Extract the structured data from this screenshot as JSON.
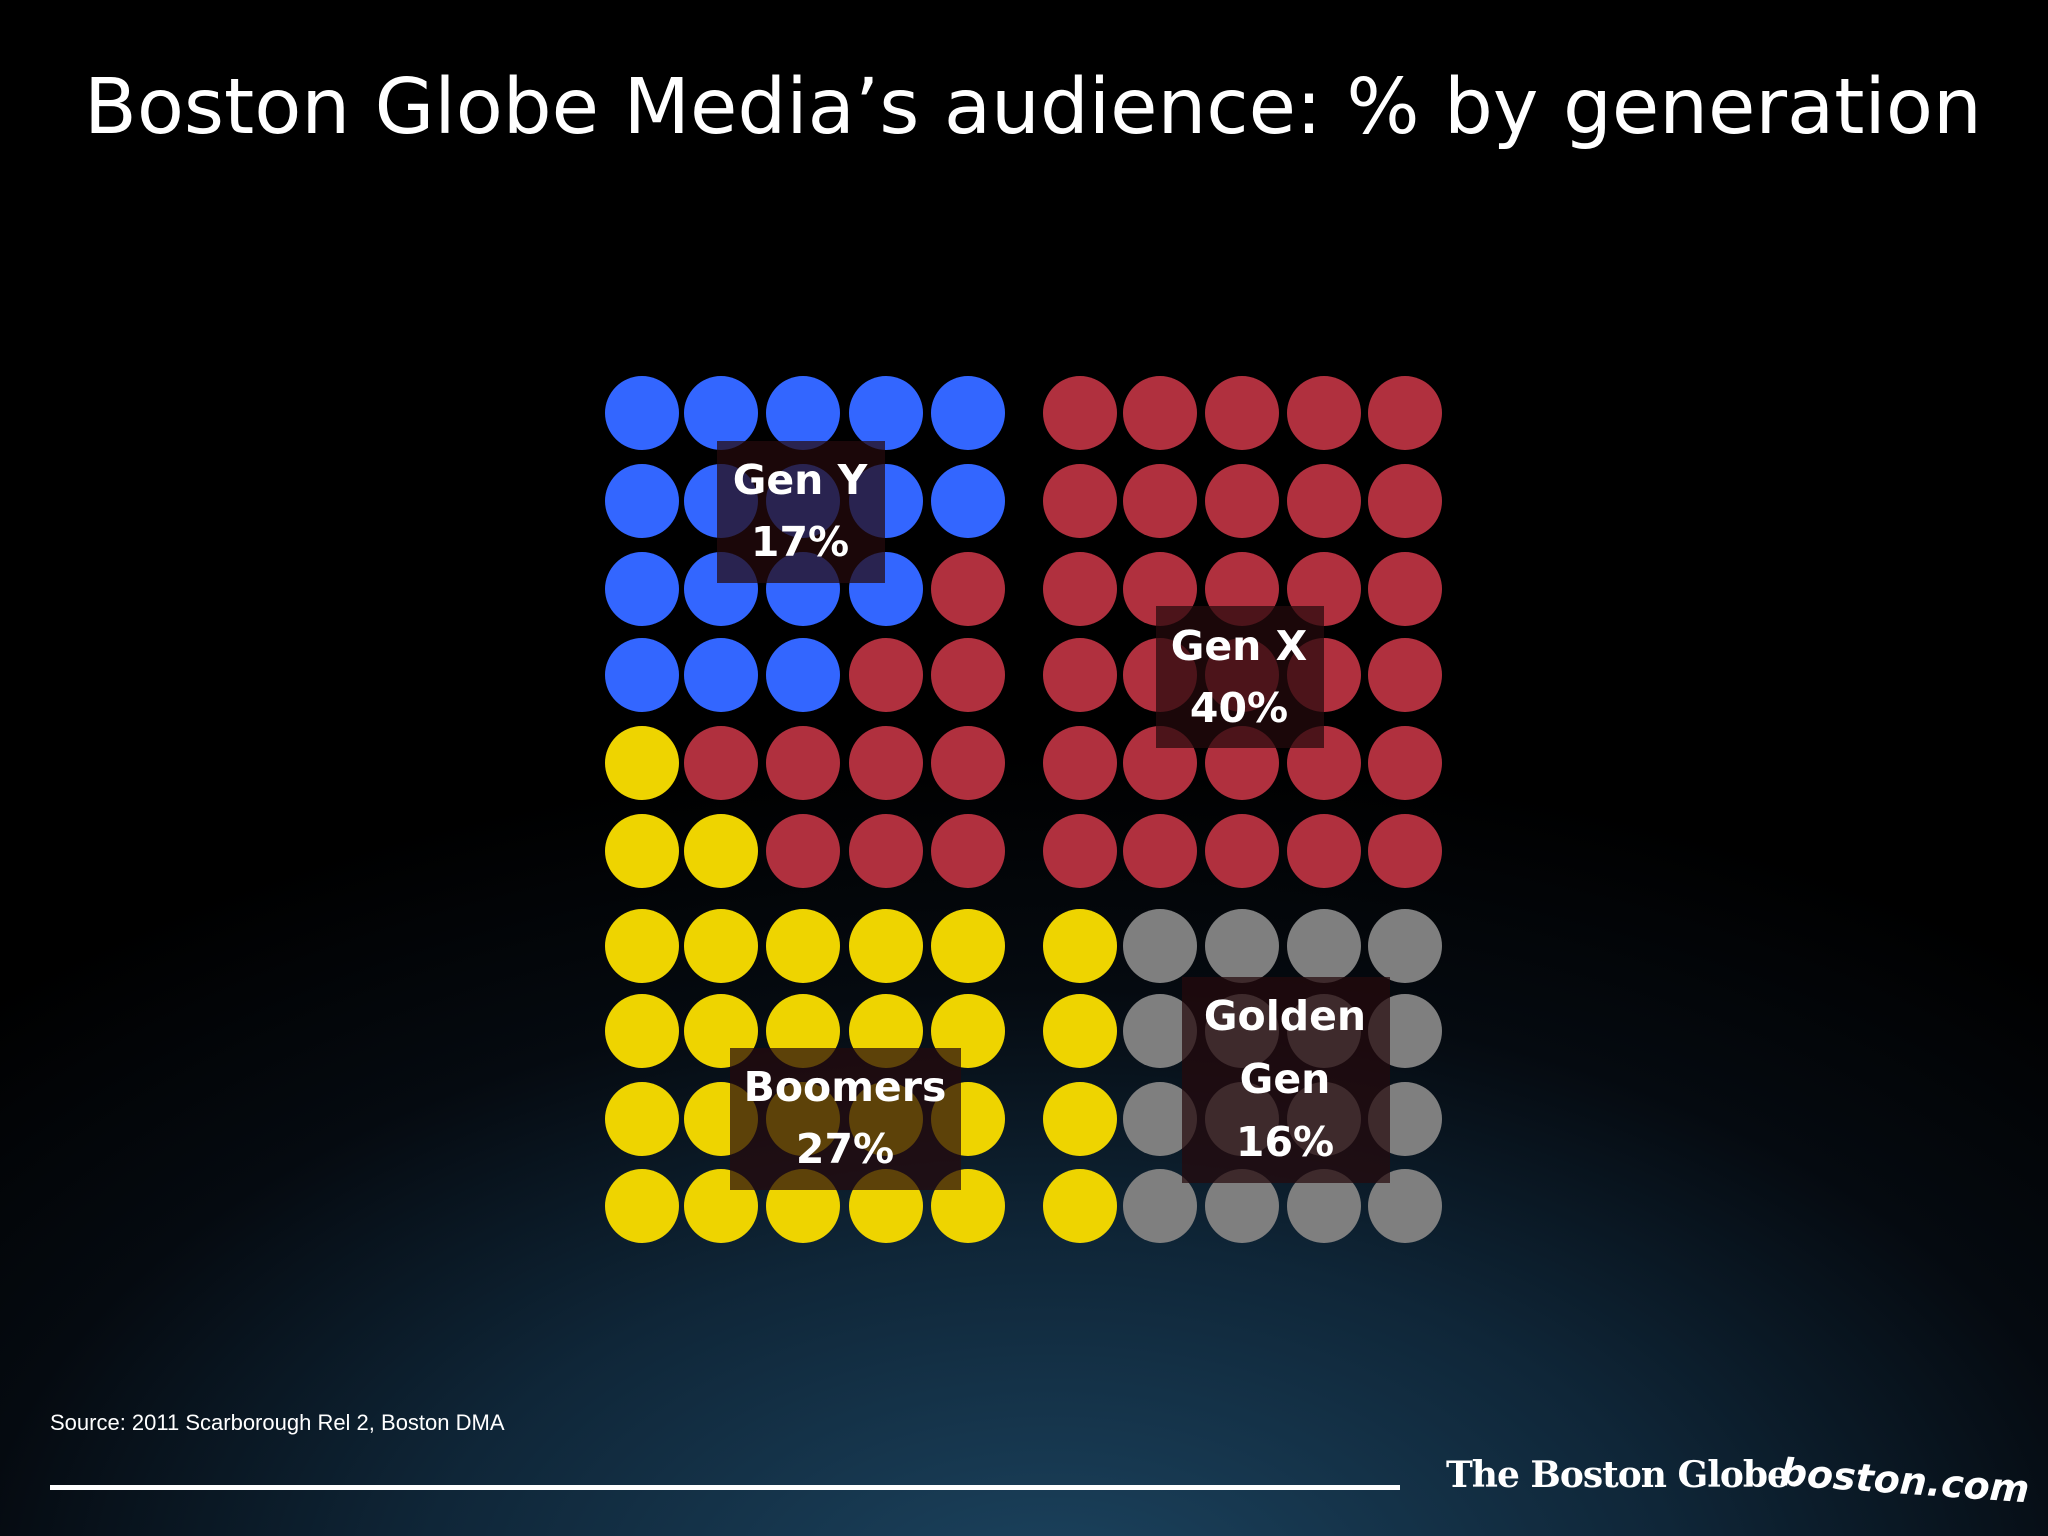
{
  "title": "Boston Globe Media’s audience: % by generation",
  "source": "Source: 2011 Scarborough Rel 2, Boston DMA",
  "logos": {
    "globe": "The Boston Globe",
    "bostoncom": "boston.com"
  },
  "chart_data": {
    "type": "dot-matrix",
    "title": "Boston Globe Media’s audience: % by generation",
    "grid": {
      "rows": 10,
      "columns": 10
    },
    "series": [
      {
        "name": "Gen Y",
        "value": 17,
        "color": "#3366ff",
        "label_lines": [
          "Gen Y",
          "17%"
        ]
      },
      {
        "name": "Gen X",
        "value": 40,
        "color": "#b0303e",
        "label_lines": [
          "Gen X",
          "40%"
        ]
      },
      {
        "name": "Boomers",
        "value": 27,
        "color": "#eed400",
        "label_lines": [
          "Boomers",
          "27%"
        ]
      },
      {
        "name": "Golden Gen",
        "value": 16,
        "color": "#7f7f7f",
        "label_lines": [
          "Golden",
          "Gen",
          "16%"
        ]
      }
    ],
    "cells": [
      "YYYYYXXXXX",
      "YYYYYXXXXX",
      "YYYYXXXXXX",
      "YYYXXXXXXX",
      "BXXXXXXXXX",
      "BBXXXXXXXX",
      "BBBBBBGGGG",
      "BBBBBBGGGG",
      "BBBBBBGGGG",
      "BBBBBBGGGG"
    ]
  }
}
